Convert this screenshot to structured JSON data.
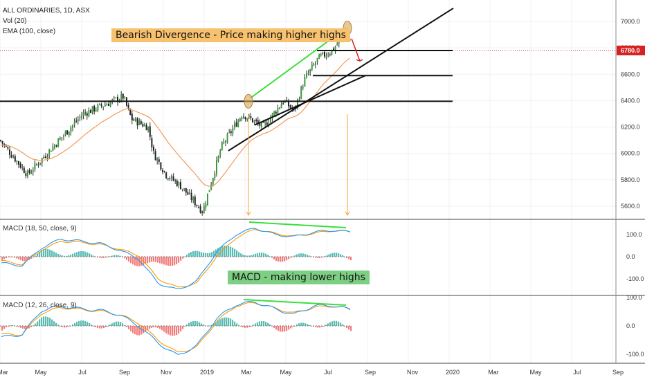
{
  "legend": {
    "symbol": "ALL ORDINARIES, 1D, ASX",
    "vol": "Vol (20)",
    "ema": "EMA (100, close)"
  },
  "panes": {
    "macd1_label": "MACD (18, 50, close, 9)",
    "macd2_label": "MACD (12, 26, close, 9)"
  },
  "annotations": {
    "bearish": "Bearish Divergence - Price making higher highs",
    "macd": "MACD - making lower highs"
  },
  "colors": {
    "up": "#26a69a",
    "down": "#ef5350",
    "ema": "#f39a5b",
    "macd_line": "#2196f3",
    "signal_line": "#ff9800",
    "trend_green": "#3adf3a",
    "arrow_orange": "#f7a531",
    "arrow_red": "#d62222",
    "last_price": "#d62222"
  },
  "chart_data": [
    {
      "type": "candlestick",
      "title": "ALL ORDINARIES, 1D, ASX",
      "x_ticks": [
        "Mar",
        "May",
        "Jul",
        "Sep",
        "Nov",
        "2019",
        "Mar",
        "May",
        "Jul",
        "Sep",
        "Nov",
        "2020",
        "Mar",
        "May",
        "Jul",
        "Sep"
      ],
      "y_ticks": [
        "7000.0",
        "6800.0",
        "6600.0",
        "6400.0",
        "6200.0",
        "6000.0",
        "5800.0",
        "5600.0"
      ],
      "ylim": [
        5520,
        7130
      ],
      "last_price": "6780.0",
      "price_keypoints": {
        "dates": [
          "Feb 2018",
          "Mar 2018",
          "Apr 2018",
          "May 2018",
          "Jun 2018",
          "Jul 2018",
          "Aug 2018",
          "Sep 2018",
          "Oct 2018",
          "Nov 2018",
          "Dec 2018",
          "Jan 2019",
          "Feb 2019",
          "Mar 2019",
          "Apr 2019",
          "May 2019",
          "Jun 2019",
          "Jul 2019",
          "Aug 2019"
        ],
        "close": [
          6050,
          6000,
          5920,
          6150,
          6300,
          6360,
          6400,
          6360,
          6060,
          5780,
          5620,
          5900,
          6120,
          6300,
          6340,
          6360,
          6590,
          6770,
          6910
        ]
      },
      "ema_label": "EMA (100, close)",
      "annotations": [
        "Bearish Divergence - Price making higher highs"
      ]
    },
    {
      "type": "line",
      "title": "MACD (18, 50, close, 9)",
      "y_ticks": [
        "100.0",
        "0.0",
        "-100.0"
      ],
      "series": [
        {
          "name": "MACD",
          "values": [
            -30,
            -40,
            40,
            80,
            70,
            60,
            30,
            -10,
            -120,
            -150,
            -110,
            20,
            100,
            130,
            100,
            90,
            110,
            120,
            110
          ]
        },
        {
          "name": "Signal",
          "values": [
            -20,
            -35,
            30,
            70,
            65,
            55,
            35,
            5,
            -100,
            -140,
            -120,
            0,
            85,
            125,
            105,
            92,
            105,
            118,
            112
          ]
        }
      ],
      "annotations": [
        "MACD - making lower highs"
      ]
    },
    {
      "type": "line",
      "title": "MACD (12, 26, close, 9)",
      "y_ticks": [
        "100.0",
        "0.0",
        "-100.0"
      ],
      "series": [
        {
          "name": "MACD",
          "values": [
            -40,
            -30,
            55,
            70,
            60,
            55,
            40,
            0,
            -60,
            -105,
            -70,
            25,
            75,
            85,
            60,
            40,
            70,
            72,
            55
          ]
        },
        {
          "name": "Signal",
          "values": [
            -30,
            -30,
            45,
            65,
            58,
            52,
            40,
            10,
            -50,
            -95,
            -75,
            15,
            70,
            82,
            62,
            45,
            65,
            70,
            58
          ]
        }
      ]
    }
  ]
}
